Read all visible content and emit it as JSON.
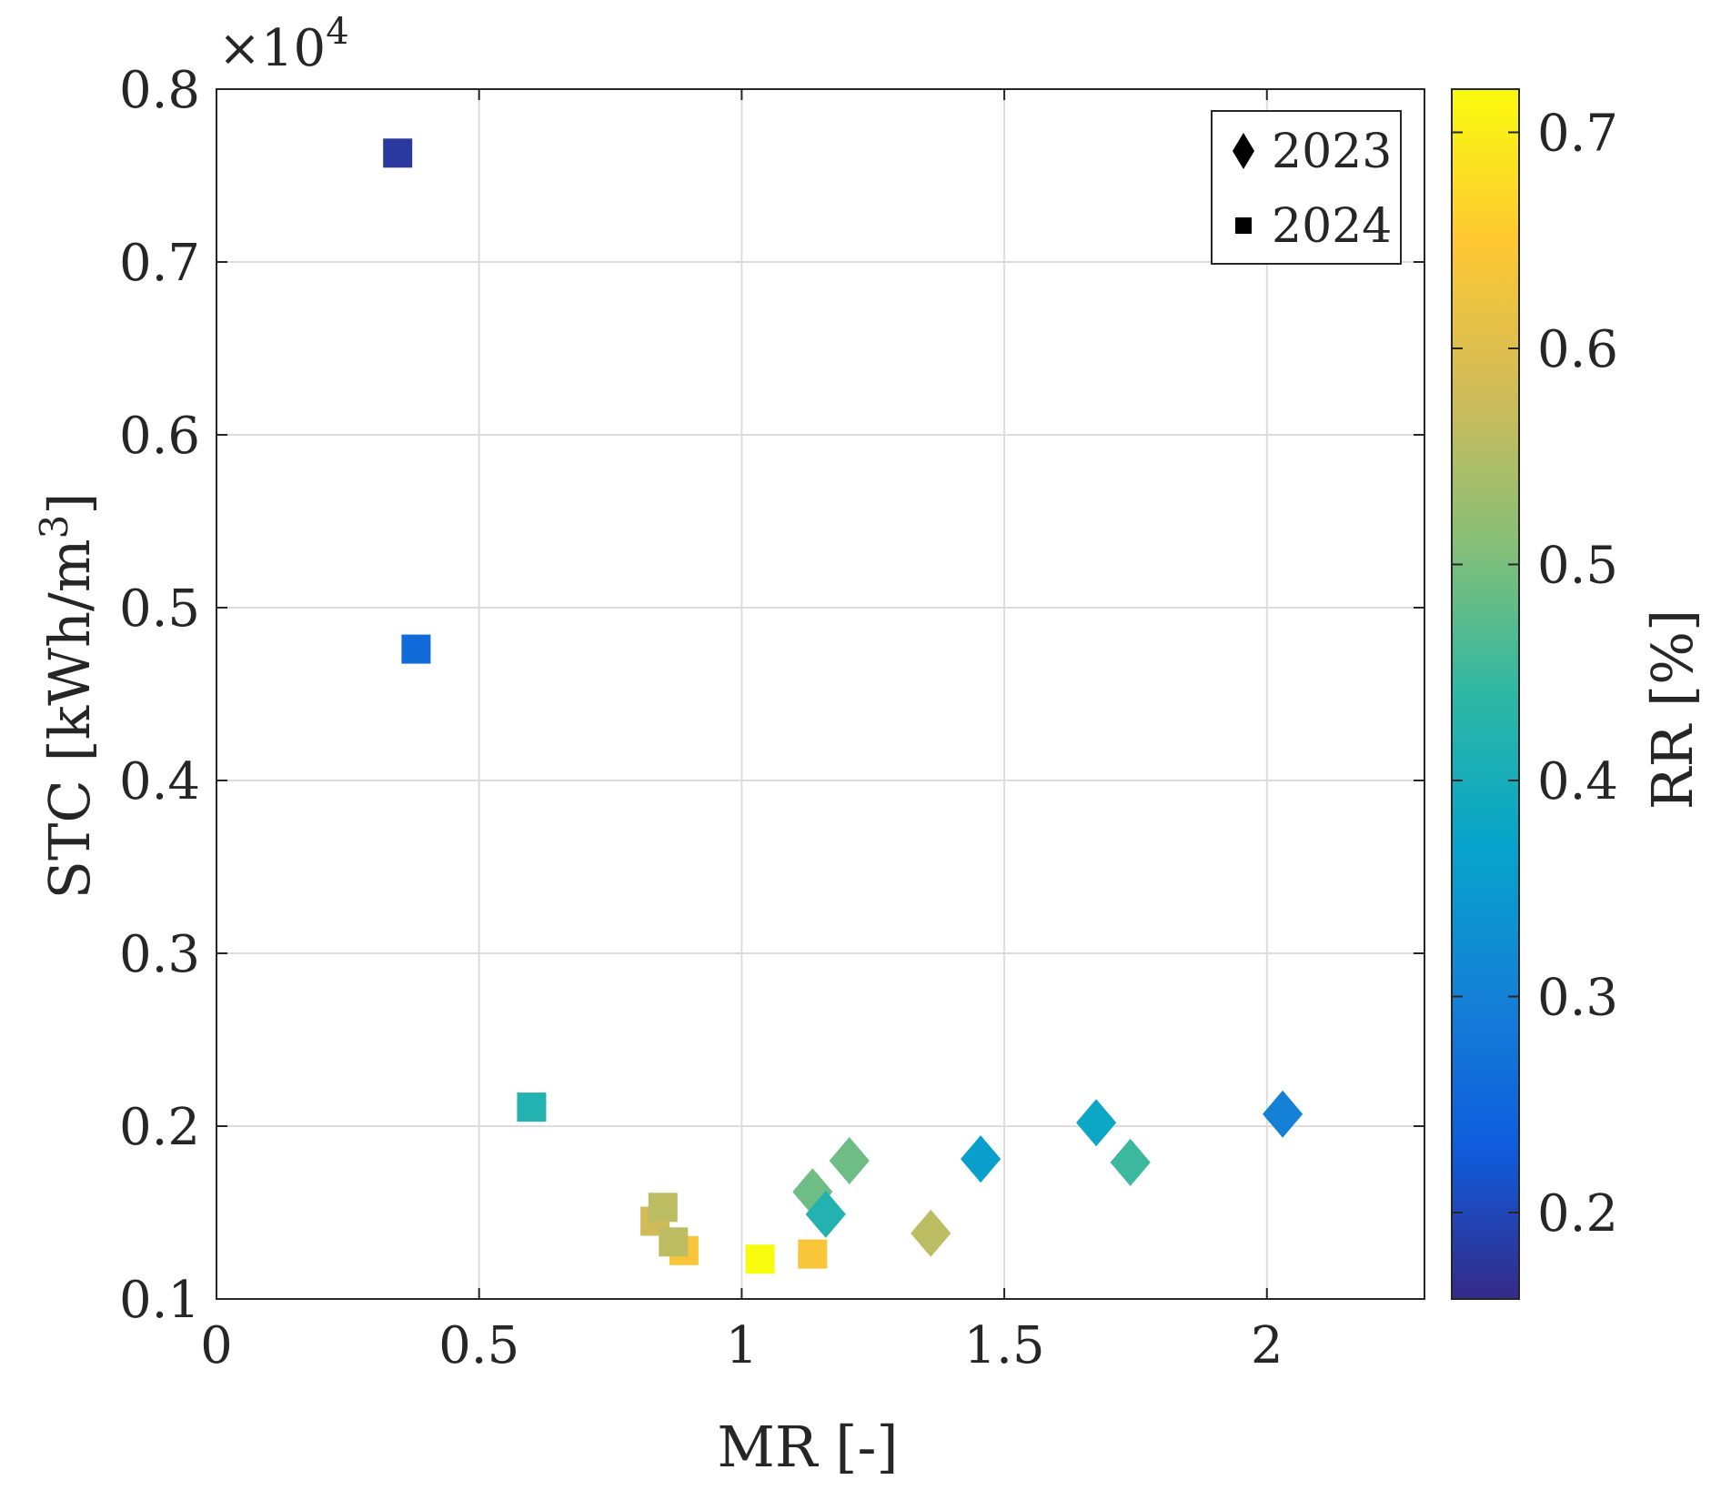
{
  "chart_data": {
    "type": "scatter",
    "title": "",
    "xlabel": "MR [-]",
    "ylabel": "STC [kWh/m³]",
    "ylabel_base": "STC [kWh/m",
    "ylabel_sup": "3",
    "ylabel_close": "]",
    "y_multiplier": "×10",
    "y_multiplier_exp": "4",
    "xlim": [
      0,
      2.3
    ],
    "ylim": [
      0.1,
      0.8
    ],
    "xticks": [
      0,
      0.5,
      1,
      1.5,
      2
    ],
    "xtick_labels": [
      "0",
      "0.5",
      "1",
      "1.5",
      "2"
    ],
    "yticks": [
      0.1,
      0.2,
      0.3,
      0.4,
      0.5,
      0.6,
      0.7,
      0.8
    ],
    "ytick_labels": [
      "0.1",
      "0.2",
      "0.3",
      "0.4",
      "0.5",
      "0.6",
      "0.7",
      "0.8"
    ],
    "grid": true,
    "legend": {
      "position": "top-right",
      "entries": [
        {
          "label": "2023",
          "marker": "diamond"
        },
        {
          "label": "2024",
          "marker": "square"
        }
      ]
    },
    "colorbar": {
      "label": "RR [%]",
      "range": [
        0.16,
        0.72
      ],
      "ticks": [
        0.2,
        0.3,
        0.4,
        0.5,
        0.6,
        0.7
      ],
      "tick_labels": [
        "0.2",
        "0.3",
        "0.4",
        "0.5",
        "0.6",
        "0.7"
      ],
      "colormap": "parula",
      "stops": [
        "#352a87",
        "#0f5cdd",
        "#1481d6",
        "#06a4ca",
        "#2eb7a4",
        "#87bf77",
        "#d1bb59",
        "#fec832",
        "#f9fb0e"
      ]
    },
    "series": [
      {
        "name": "2023",
        "marker": "diamond",
        "points": [
          {
            "x": 1.135,
            "y": 0.162,
            "c": 0.49
          },
          {
            "x": 1.16,
            "y": 0.149,
            "c": 0.42
          },
          {
            "x": 1.205,
            "y": 0.18,
            "c": 0.49
          },
          {
            "x": 1.36,
            "y": 0.138,
            "c": 0.56
          },
          {
            "x": 1.455,
            "y": 0.181,
            "c": 0.36
          },
          {
            "x": 1.675,
            "y": 0.202,
            "c": 0.38
          },
          {
            "x": 1.74,
            "y": 0.179,
            "c": 0.45
          },
          {
            "x": 2.03,
            "y": 0.207,
            "c": 0.3
          }
        ]
      },
      {
        "name": "2024",
        "marker": "square",
        "points": [
          {
            "x": 0.345,
            "y": 0.763,
            "c": 0.18
          },
          {
            "x": 0.38,
            "y": 0.476,
            "c": 0.26
          },
          {
            "x": 0.6,
            "y": 0.211,
            "c": 0.42
          },
          {
            "x": 0.835,
            "y": 0.145,
            "c": 0.58
          },
          {
            "x": 0.85,
            "y": 0.153,
            "c": 0.56
          },
          {
            "x": 0.89,
            "y": 0.128,
            "c": 0.64
          },
          {
            "x": 0.87,
            "y": 0.133,
            "c": 0.56
          },
          {
            "x": 1.035,
            "y": 0.123,
            "c": 0.72
          },
          {
            "x": 1.135,
            "y": 0.126,
            "c": 0.64
          }
        ]
      }
    ]
  }
}
